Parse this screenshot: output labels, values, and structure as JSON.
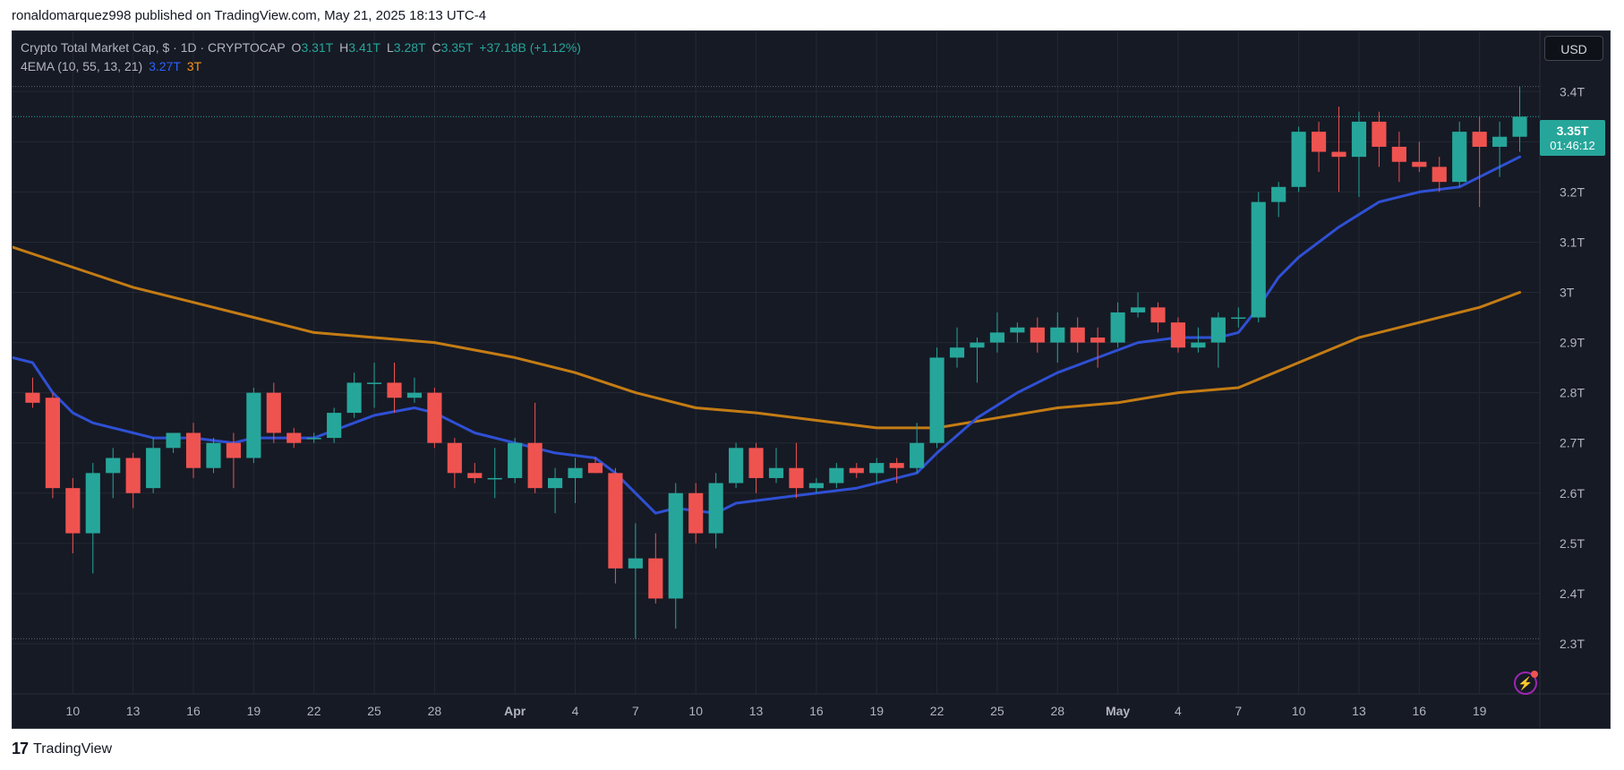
{
  "publish_line": "ronaldomarquez998 published on TradingView.com, May 21, 2025 18:13 UTC-4",
  "legend": {
    "title": "Crypto Total Market Cap, $ · 1D · CRYPTOCAP",
    "o_label": "O",
    "o": "3.31T",
    "h_label": "H",
    "h": "3.41T",
    "l_label": "L",
    "l": "3.28T",
    "c_label": "C",
    "c": "3.35T",
    "change": "+37.18B (+1.12%)",
    "indicator": "4EMA (10, 55, 13, 21)",
    "ema_fast": "3.27T",
    "ema_slow": "3T"
  },
  "currency_button": "USD",
  "last_price": {
    "value": "3.35T",
    "countdown": "01:46:12"
  },
  "footer_brand": "TradingView",
  "colors": {
    "up": "#26a69a",
    "down": "#ef5350",
    "ema_fast": "#2f50d4",
    "ema_slow": "#c47c14",
    "background": "#161a25",
    "grid": "#242833",
    "axis_text": "#b2b5be"
  },
  "chart_data": {
    "type": "candlestick",
    "title": "Crypto Total Market Cap, $ · 1D · CRYPTOCAP",
    "y_unit": "T",
    "ylim": [
      2.2,
      3.52
    ],
    "y_ticks": [
      "2.3T",
      "2.4T",
      "2.5T",
      "2.6T",
      "2.7T",
      "2.8T",
      "2.9T",
      "3T",
      "3.1T",
      "3.2T",
      "3.3T",
      "3.4T"
    ],
    "y_tick_values": [
      2.3,
      2.4,
      2.5,
      2.6,
      2.7,
      2.8,
      2.9,
      3.0,
      3.1,
      3.2,
      3.3,
      3.4
    ],
    "x_tick_labels": [
      {
        "label": "10",
        "date": "2025-03-10",
        "bold": false
      },
      {
        "label": "13",
        "date": "2025-03-13",
        "bold": false
      },
      {
        "label": "16",
        "date": "2025-03-16",
        "bold": false
      },
      {
        "label": "19",
        "date": "2025-03-19",
        "bold": false
      },
      {
        "label": "22",
        "date": "2025-03-22",
        "bold": false
      },
      {
        "label": "25",
        "date": "2025-03-25",
        "bold": false
      },
      {
        "label": "28",
        "date": "2025-03-28",
        "bold": false
      },
      {
        "label": "Apr",
        "date": "2025-04-01",
        "bold": true
      },
      {
        "label": "4",
        "date": "2025-04-04",
        "bold": false
      },
      {
        "label": "7",
        "date": "2025-04-07",
        "bold": false
      },
      {
        "label": "10",
        "date": "2025-04-10",
        "bold": false
      },
      {
        "label": "13",
        "date": "2025-04-13",
        "bold": false
      },
      {
        "label": "16",
        "date": "2025-04-16",
        "bold": false
      },
      {
        "label": "19",
        "date": "2025-04-19",
        "bold": false
      },
      {
        "label": "22",
        "date": "2025-04-22",
        "bold": false
      },
      {
        "label": "25",
        "date": "2025-04-25",
        "bold": false
      },
      {
        "label": "28",
        "date": "2025-04-28",
        "bold": false
      },
      {
        "label": "May",
        "date": "2025-05-01",
        "bold": true
      },
      {
        "label": "4",
        "date": "2025-05-04",
        "bold": false
      },
      {
        "label": "7",
        "date": "2025-05-07",
        "bold": false
      },
      {
        "label": "10",
        "date": "2025-05-10",
        "bold": false
      },
      {
        "label": "13",
        "date": "2025-05-13",
        "bold": false
      },
      {
        "label": "16",
        "date": "2025-05-16",
        "bold": false
      },
      {
        "label": "19",
        "date": "2025-05-19",
        "bold": false
      }
    ],
    "x_range": [
      "2025-03-07",
      "2025-05-22"
    ],
    "ohlc": [
      {
        "date": "2025-03-08",
        "o": 2.8,
        "h": 2.83,
        "l": 2.77,
        "c": 2.78
      },
      {
        "date": "2025-03-09",
        "o": 2.79,
        "h": 2.8,
        "l": 2.59,
        "c": 2.61
      },
      {
        "date": "2025-03-10",
        "o": 2.61,
        "h": 2.63,
        "l": 2.48,
        "c": 2.52
      },
      {
        "date": "2025-03-11",
        "o": 2.52,
        "h": 2.66,
        "l": 2.44,
        "c": 2.64
      },
      {
        "date": "2025-03-12",
        "o": 2.64,
        "h": 2.69,
        "l": 2.59,
        "c": 2.67
      },
      {
        "date": "2025-03-13",
        "o": 2.67,
        "h": 2.68,
        "l": 2.57,
        "c": 2.6
      },
      {
        "date": "2025-03-14",
        "o": 2.61,
        "h": 2.71,
        "l": 2.6,
        "c": 2.69
      },
      {
        "date": "2025-03-15",
        "o": 2.69,
        "h": 2.72,
        "l": 2.68,
        "c": 2.72
      },
      {
        "date": "2025-03-16",
        "o": 2.72,
        "h": 2.74,
        "l": 2.63,
        "c": 2.65
      },
      {
        "date": "2025-03-17",
        "o": 2.65,
        "h": 2.71,
        "l": 2.64,
        "c": 2.7
      },
      {
        "date": "2025-03-18",
        "o": 2.7,
        "h": 2.72,
        "l": 2.61,
        "c": 2.67
      },
      {
        "date": "2025-03-19",
        "o": 2.67,
        "h": 2.81,
        "l": 2.66,
        "c": 2.8
      },
      {
        "date": "2025-03-20",
        "o": 2.8,
        "h": 2.82,
        "l": 2.7,
        "c": 2.72
      },
      {
        "date": "2025-03-21",
        "o": 2.72,
        "h": 2.73,
        "l": 2.69,
        "c": 2.7
      },
      {
        "date": "2025-03-22",
        "o": 2.71,
        "h": 2.72,
        "l": 2.7,
        "c": 2.71
      },
      {
        "date": "2025-03-23",
        "o": 2.71,
        "h": 2.77,
        "l": 2.7,
        "c": 2.76
      },
      {
        "date": "2025-03-24",
        "o": 2.76,
        "h": 2.84,
        "l": 2.75,
        "c": 2.82
      },
      {
        "date": "2025-03-25",
        "o": 2.82,
        "h": 2.86,
        "l": 2.77,
        "c": 2.82
      },
      {
        "date": "2025-03-26",
        "o": 2.82,
        "h": 2.86,
        "l": 2.76,
        "c": 2.79
      },
      {
        "date": "2025-03-27",
        "o": 2.79,
        "h": 2.83,
        "l": 2.78,
        "c": 2.8
      },
      {
        "date": "2025-03-28",
        "o": 2.8,
        "h": 2.81,
        "l": 2.69,
        "c": 2.7
      },
      {
        "date": "2025-03-29",
        "o": 2.7,
        "h": 2.71,
        "l": 2.61,
        "c": 2.64
      },
      {
        "date": "2025-03-30",
        "o": 2.64,
        "h": 2.66,
        "l": 2.62,
        "c": 2.63
      },
      {
        "date": "2025-03-31",
        "o": 2.63,
        "h": 2.69,
        "l": 2.59,
        "c": 2.63
      },
      {
        "date": "2025-04-01",
        "o": 2.63,
        "h": 2.71,
        "l": 2.62,
        "c": 2.7
      },
      {
        "date": "2025-04-02",
        "o": 2.7,
        "h": 2.78,
        "l": 2.6,
        "c": 2.61
      },
      {
        "date": "2025-04-03",
        "o": 2.61,
        "h": 2.65,
        "l": 2.56,
        "c": 2.63
      },
      {
        "date": "2025-04-04",
        "o": 2.63,
        "h": 2.67,
        "l": 2.58,
        "c": 2.65
      },
      {
        "date": "2025-04-05",
        "o": 2.66,
        "h": 2.67,
        "l": 2.64,
        "c": 2.64
      },
      {
        "date": "2025-04-06",
        "o": 2.64,
        "h": 2.65,
        "l": 2.42,
        "c": 2.45
      },
      {
        "date": "2025-04-07",
        "o": 2.45,
        "h": 2.54,
        "l": 2.31,
        "c": 2.47
      },
      {
        "date": "2025-04-08",
        "o": 2.47,
        "h": 2.52,
        "l": 2.38,
        "c": 2.39
      },
      {
        "date": "2025-04-09",
        "o": 2.39,
        "h": 2.62,
        "l": 2.33,
        "c": 2.6
      },
      {
        "date": "2025-04-10",
        "o": 2.6,
        "h": 2.62,
        "l": 2.5,
        "c": 2.52
      },
      {
        "date": "2025-04-11",
        "o": 2.52,
        "h": 2.64,
        "l": 2.49,
        "c": 2.62
      },
      {
        "date": "2025-04-12",
        "o": 2.62,
        "h": 2.7,
        "l": 2.61,
        "c": 2.69
      },
      {
        "date": "2025-04-13",
        "o": 2.69,
        "h": 2.7,
        "l": 2.6,
        "c": 2.63
      },
      {
        "date": "2025-04-14",
        "o": 2.63,
        "h": 2.69,
        "l": 2.62,
        "c": 2.65
      },
      {
        "date": "2025-04-15",
        "o": 2.65,
        "h": 2.7,
        "l": 2.59,
        "c": 2.61
      },
      {
        "date": "2025-04-16",
        "o": 2.61,
        "h": 2.63,
        "l": 2.6,
        "c": 2.62
      },
      {
        "date": "2025-04-17",
        "o": 2.62,
        "h": 2.66,
        "l": 2.61,
        "c": 2.65
      },
      {
        "date": "2025-04-18",
        "o": 2.65,
        "h": 2.66,
        "l": 2.63,
        "c": 2.64
      },
      {
        "date": "2025-04-19",
        "o": 2.64,
        "h": 2.67,
        "l": 2.62,
        "c": 2.66
      },
      {
        "date": "2025-04-20",
        "o": 2.66,
        "h": 2.67,
        "l": 2.62,
        "c": 2.65
      },
      {
        "date": "2025-04-21",
        "o": 2.65,
        "h": 2.74,
        "l": 2.64,
        "c": 2.7
      },
      {
        "date": "2025-04-22",
        "o": 2.7,
        "h": 2.89,
        "l": 2.69,
        "c": 2.87
      },
      {
        "date": "2025-04-23",
        "o": 2.87,
        "h": 2.93,
        "l": 2.85,
        "c": 2.89
      },
      {
        "date": "2025-04-24",
        "o": 2.89,
        "h": 2.91,
        "l": 2.82,
        "c": 2.9
      },
      {
        "date": "2025-04-25",
        "o": 2.9,
        "h": 2.96,
        "l": 2.88,
        "c": 2.92
      },
      {
        "date": "2025-04-26",
        "o": 2.92,
        "h": 2.94,
        "l": 2.9,
        "c": 2.93
      },
      {
        "date": "2025-04-27",
        "o": 2.93,
        "h": 2.95,
        "l": 2.88,
        "c": 2.9
      },
      {
        "date": "2025-04-28",
        "o": 2.9,
        "h": 2.96,
        "l": 2.86,
        "c": 2.93
      },
      {
        "date": "2025-04-29",
        "o": 2.93,
        "h": 2.95,
        "l": 2.88,
        "c": 2.9
      },
      {
        "date": "2025-04-30",
        "o": 2.91,
        "h": 2.93,
        "l": 2.85,
        "c": 2.9
      },
      {
        "date": "2025-05-01",
        "o": 2.9,
        "h": 2.98,
        "l": 2.89,
        "c": 2.96
      },
      {
        "date": "2025-05-02",
        "o": 2.96,
        "h": 3.0,
        "l": 2.95,
        "c": 2.97
      },
      {
        "date": "2025-05-03",
        "o": 2.97,
        "h": 2.98,
        "l": 2.92,
        "c": 2.94
      },
      {
        "date": "2025-05-04",
        "o": 2.94,
        "h": 2.95,
        "l": 2.88,
        "c": 2.89
      },
      {
        "date": "2025-05-05",
        "o": 2.89,
        "h": 2.93,
        "l": 2.88,
        "c": 2.9
      },
      {
        "date": "2025-05-06",
        "o": 2.9,
        "h": 2.96,
        "l": 2.85,
        "c": 2.95
      },
      {
        "date": "2025-05-07",
        "o": 2.95,
        "h": 2.97,
        "l": 2.93,
        "c": 2.95
      },
      {
        "date": "2025-05-08",
        "o": 2.95,
        "h": 3.2,
        "l": 2.94,
        "c": 3.18
      },
      {
        "date": "2025-05-09",
        "o": 3.18,
        "h": 3.22,
        "l": 3.15,
        "c": 3.21
      },
      {
        "date": "2025-05-10",
        "o": 3.21,
        "h": 3.33,
        "l": 3.2,
        "c": 3.32
      },
      {
        "date": "2025-05-11",
        "o": 3.32,
        "h": 3.34,
        "l": 3.24,
        "c": 3.28
      },
      {
        "date": "2025-05-12",
        "o": 3.28,
        "h": 3.37,
        "l": 3.2,
        "c": 3.27
      },
      {
        "date": "2025-05-13",
        "o": 3.27,
        "h": 3.36,
        "l": 3.19,
        "c": 3.34
      },
      {
        "date": "2025-05-14",
        "o": 3.34,
        "h": 3.36,
        "l": 3.25,
        "c": 3.29
      },
      {
        "date": "2025-05-15",
        "o": 3.29,
        "h": 3.32,
        "l": 3.22,
        "c": 3.26
      },
      {
        "date": "2025-05-16",
        "o": 3.26,
        "h": 3.3,
        "l": 3.24,
        "c": 3.25
      },
      {
        "date": "2025-05-17",
        "o": 3.25,
        "h": 3.27,
        "l": 3.2,
        "c": 3.22
      },
      {
        "date": "2025-05-18",
        "o": 3.22,
        "h": 3.34,
        "l": 3.21,
        "c": 3.32
      },
      {
        "date": "2025-05-19",
        "o": 3.32,
        "h": 3.35,
        "l": 3.17,
        "c": 3.29
      },
      {
        "date": "2025-05-20",
        "o": 3.29,
        "h": 3.34,
        "l": 3.23,
        "c": 3.31
      },
      {
        "date": "2025-05-21",
        "o": 3.31,
        "h": 3.41,
        "l": 3.28,
        "c": 3.35
      }
    ],
    "ema_fast_series": {
      "values": [
        {
          "date": "2025-03-07",
          "v": 2.87
        },
        {
          "date": "2025-03-08",
          "v": 2.86
        },
        {
          "date": "2025-03-09",
          "v": 2.8
        },
        {
          "date": "2025-03-10",
          "v": 2.76
        },
        {
          "date": "2025-03-11",
          "v": 2.74
        },
        {
          "date": "2025-03-12",
          "v": 2.73
        },
        {
          "date": "2025-03-14",
          "v": 2.71
        },
        {
          "date": "2025-03-16",
          "v": 2.71
        },
        {
          "date": "2025-03-18",
          "v": 2.7
        },
        {
          "date": "2025-03-19",
          "v": 2.71
        },
        {
          "date": "2025-03-22",
          "v": 2.71
        },
        {
          "date": "2025-03-24",
          "v": 2.74
        },
        {
          "date": "2025-03-25",
          "v": 2.755
        },
        {
          "date": "2025-03-27",
          "v": 2.77
        },
        {
          "date": "2025-03-28",
          "v": 2.76
        },
        {
          "date": "2025-03-30",
          "v": 2.72
        },
        {
          "date": "2025-04-01",
          "v": 2.7
        },
        {
          "date": "2025-04-03",
          "v": 2.68
        },
        {
          "date": "2025-04-05",
          "v": 2.67
        },
        {
          "date": "2025-04-06",
          "v": 2.64
        },
        {
          "date": "2025-04-07",
          "v": 2.6
        },
        {
          "date": "2025-04-08",
          "v": 2.56
        },
        {
          "date": "2025-04-09",
          "v": 2.57
        },
        {
          "date": "2025-04-11",
          "v": 2.56
        },
        {
          "date": "2025-04-12",
          "v": 2.58
        },
        {
          "date": "2025-04-14",
          "v": 2.59
        },
        {
          "date": "2025-04-16",
          "v": 2.6
        },
        {
          "date": "2025-04-18",
          "v": 2.61
        },
        {
          "date": "2025-04-20",
          "v": 2.63
        },
        {
          "date": "2025-04-21",
          "v": 2.64
        },
        {
          "date": "2025-04-22",
          "v": 2.68
        },
        {
          "date": "2025-04-24",
          "v": 2.75
        },
        {
          "date": "2025-04-26",
          "v": 2.8
        },
        {
          "date": "2025-04-28",
          "v": 2.84
        },
        {
          "date": "2025-04-30",
          "v": 2.87
        },
        {
          "date": "2025-05-02",
          "v": 2.9
        },
        {
          "date": "2025-05-04",
          "v": 2.91
        },
        {
          "date": "2025-05-06",
          "v": 2.91
        },
        {
          "date": "2025-05-07",
          "v": 2.92
        },
        {
          "date": "2025-05-08",
          "v": 2.97
        },
        {
          "date": "2025-05-09",
          "v": 3.03
        },
        {
          "date": "2025-05-10",
          "v": 3.07
        },
        {
          "date": "2025-05-12",
          "v": 3.13
        },
        {
          "date": "2025-05-14",
          "v": 3.18
        },
        {
          "date": "2025-05-16",
          "v": 3.2
        },
        {
          "date": "2025-05-18",
          "v": 3.21
        },
        {
          "date": "2025-05-21",
          "v": 3.27
        }
      ]
    },
    "ema_slow_series": {
      "values": [
        {
          "date": "2025-03-07",
          "v": 3.09
        },
        {
          "date": "2025-03-10",
          "v": 3.05
        },
        {
          "date": "2025-03-13",
          "v": 3.01
        },
        {
          "date": "2025-03-16",
          "v": 2.98
        },
        {
          "date": "2025-03-19",
          "v": 2.95
        },
        {
          "date": "2025-03-22",
          "v": 2.92
        },
        {
          "date": "2025-03-25",
          "v": 2.91
        },
        {
          "date": "2025-03-28",
          "v": 2.9
        },
        {
          "date": "2025-04-01",
          "v": 2.87
        },
        {
          "date": "2025-04-04",
          "v": 2.84
        },
        {
          "date": "2025-04-07",
          "v": 2.8
        },
        {
          "date": "2025-04-10",
          "v": 2.77
        },
        {
          "date": "2025-04-13",
          "v": 2.76
        },
        {
          "date": "2025-04-16",
          "v": 2.745
        },
        {
          "date": "2025-04-19",
          "v": 2.73
        },
        {
          "date": "2025-04-22",
          "v": 2.73
        },
        {
          "date": "2025-04-25",
          "v": 2.75
        },
        {
          "date": "2025-04-28",
          "v": 2.77
        },
        {
          "date": "2025-05-01",
          "v": 2.78
        },
        {
          "date": "2025-05-04",
          "v": 2.8
        },
        {
          "date": "2025-05-07",
          "v": 2.81
        },
        {
          "date": "2025-05-10",
          "v": 2.86
        },
        {
          "date": "2025-05-13",
          "v": 2.91
        },
        {
          "date": "2025-05-16",
          "v": 2.94
        },
        {
          "date": "2025-05-19",
          "v": 2.97
        },
        {
          "date": "2025-05-21",
          "v": 3.0
        }
      ]
    },
    "reference_lines": [
      3.41,
      3.35,
      2.31
    ],
    "grid": true
  }
}
